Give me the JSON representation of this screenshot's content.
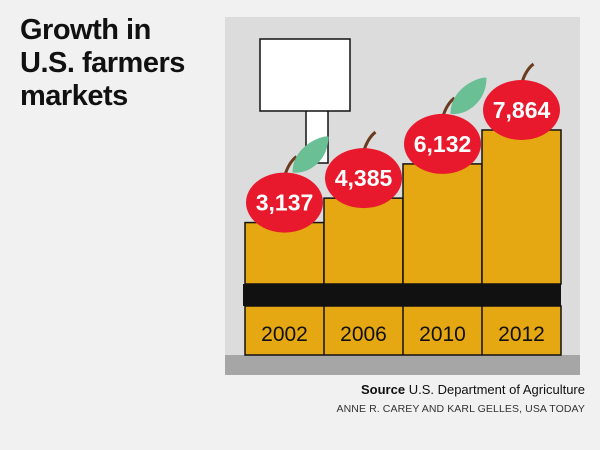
{
  "title_lines": [
    "Growth in",
    "U.S. farmers",
    "markets"
  ],
  "source": {
    "label": "Source",
    "text": "U.S. Department of Agriculture"
  },
  "credit": "ANNE R. CAREY AND KARL GELLES, USA TODAY",
  "colors": {
    "panel": "#dcdcdc",
    "floor": "#a6a6a6",
    "crate": "#e5a812",
    "crate_line": "#111111",
    "apple": "#e8192c",
    "leaf": "#6bbf94",
    "sign": "#ffffff"
  },
  "chart_data": {
    "type": "bar",
    "title": "Growth in U.S. farmers markets",
    "categories": [
      "2002",
      "2006",
      "2010",
      "2012"
    ],
    "values": [
      3137,
      4385,
      6132,
      7864
    ],
    "labels": [
      "3,137",
      "4,385",
      "6,132",
      "7,864"
    ],
    "xlabel": "",
    "ylabel": "",
    "ylim": [
      0,
      10000
    ],
    "grid": false,
    "legend": "none"
  }
}
